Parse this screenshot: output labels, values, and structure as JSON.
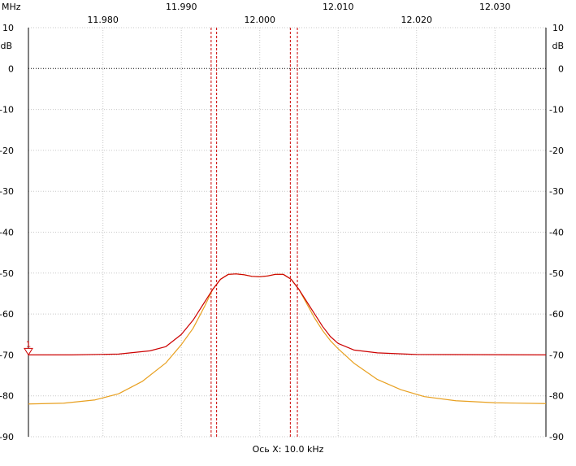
{
  "chart_data": {
    "type": "line",
    "x_unit": "MHz",
    "y_unit": "dB",
    "xlim": [
      11.9705,
      12.0365
    ],
    "ylim": [
      -90,
      10
    ],
    "x_ticks": [
      {
        "value": 11.98,
        "label": "11.980"
      },
      {
        "value": 11.99,
        "label": "11.990"
      },
      {
        "value": 12.0,
        "label": "12.000"
      },
      {
        "value": 12.01,
        "label": "12.010"
      },
      {
        "value": 12.02,
        "label": "12.020"
      },
      {
        "value": 12.03,
        "label": "12.030"
      }
    ],
    "y_ticks": [
      10,
      0,
      -10,
      -20,
      -30,
      -40,
      -50,
      -60,
      -70,
      -80,
      -90
    ],
    "x_axis_caption": "Ось X: 10.0 kHz",
    "marker": {
      "label": "1",
      "y": -70
    },
    "cursors_x": [
      11.9938,
      11.9945,
      12.0039,
      12.0048
    ],
    "colors": {
      "grid": "#c8c8c8",
      "axis": "#000000",
      "cursor": "#cc0000",
      "series_red": "#cc0000",
      "series_orange": "#e8a020"
    },
    "series": [
      {
        "color": "#cc0000",
        "points": [
          [
            11.9705,
            -70.0
          ],
          [
            11.976,
            -70.0
          ],
          [
            11.982,
            -69.8
          ],
          [
            11.986,
            -69.0
          ],
          [
            11.988,
            -68.0
          ],
          [
            11.99,
            -65.0
          ],
          [
            11.9915,
            -61.5
          ],
          [
            11.993,
            -57.0
          ],
          [
            11.994,
            -54.0
          ],
          [
            11.995,
            -51.5
          ],
          [
            11.996,
            -50.3
          ],
          [
            11.997,
            -50.2
          ],
          [
            11.998,
            -50.4
          ],
          [
            11.999,
            -50.8
          ],
          [
            12.0,
            -50.9
          ],
          [
            12.001,
            -50.7
          ],
          [
            12.002,
            -50.3
          ],
          [
            12.003,
            -50.3
          ],
          [
            12.004,
            -51.5
          ],
          [
            12.005,
            -54.0
          ],
          [
            12.006,
            -57.0
          ],
          [
            12.007,
            -60.0
          ],
          [
            12.008,
            -63.0
          ],
          [
            12.009,
            -65.5
          ],
          [
            12.01,
            -67.2
          ],
          [
            12.012,
            -68.8
          ],
          [
            12.015,
            -69.5
          ],
          [
            12.02,
            -69.9
          ],
          [
            12.0365,
            -70.0
          ]
        ]
      },
      {
        "color": "#e8a020",
        "points": [
          [
            11.9705,
            -82.0
          ],
          [
            11.975,
            -81.8
          ],
          [
            11.979,
            -81.0
          ],
          [
            11.982,
            -79.5
          ],
          [
            11.985,
            -76.5
          ],
          [
            11.988,
            -72.0
          ],
          [
            11.99,
            -67.5
          ],
          [
            11.9915,
            -63.5
          ],
          [
            11.993,
            -58.0
          ],
          [
            11.994,
            -54.0
          ],
          [
            11.995,
            -51.5
          ],
          [
            11.996,
            -50.3
          ],
          [
            11.997,
            -50.2
          ],
          [
            11.998,
            -50.4
          ],
          [
            11.999,
            -50.8
          ],
          [
            12.0,
            -50.9
          ],
          [
            12.001,
            -50.7
          ],
          [
            12.002,
            -50.3
          ],
          [
            12.003,
            -50.3
          ],
          [
            12.004,
            -51.5
          ],
          [
            12.005,
            -54.0
          ],
          [
            12.006,
            -57.5
          ],
          [
            12.007,
            -61.0
          ],
          [
            12.008,
            -64.0
          ],
          [
            12.009,
            -66.5
          ],
          [
            12.01,
            -68.5
          ],
          [
            12.012,
            -72.0
          ],
          [
            12.015,
            -76.0
          ],
          [
            12.018,
            -78.5
          ],
          [
            12.021,
            -80.2
          ],
          [
            12.025,
            -81.2
          ],
          [
            12.03,
            -81.7
          ],
          [
            12.0365,
            -81.9
          ]
        ]
      }
    ]
  }
}
